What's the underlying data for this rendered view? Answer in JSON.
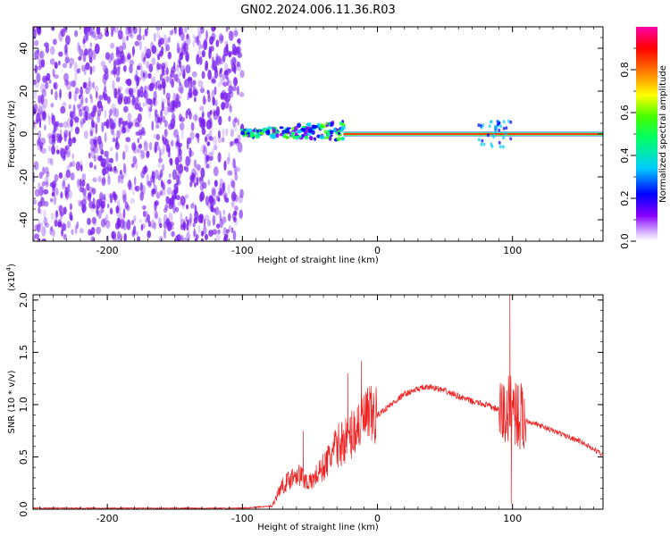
{
  "title": "GN02.2024.006.11.36.R03",
  "colors": {
    "snr_line": "#ee2222",
    "spectrogram_noise": "#7a22ee",
    "colorbar": [
      "#ffffff",
      "#8800ff",
      "#0000ff",
      "#00ccff",
      "#00ff66",
      "#44ff00",
      "#ffff00",
      "#ff8800",
      "#ff0000",
      "#ff00aa"
    ]
  },
  "chart_data": [
    {
      "type": "heatmap",
      "description_kind": "spectrogram",
      "xlabel": "Height of straight line (km)",
      "ylabel": "Frequency (Hz)",
      "xlim": [
        -255,
        167
      ],
      "ylim": [
        -50,
        50
      ],
      "xticks": [
        -200,
        -100,
        0,
        100
      ],
      "yticks": [
        -40,
        -20,
        0,
        20,
        40
      ],
      "colorbar": {
        "label": "Normalized spectral amplitude",
        "range": [
          0,
          1
        ],
        "ticks": [
          0.0,
          0.2,
          0.4,
          0.6,
          0.8
        ]
      },
      "regions": [
        {
          "x_range": [
            -255,
            -100
          ],
          "freq_range": [
            -50,
            50
          ],
          "amplitude": 0.1
        },
        {
          "x_range": [
            -100,
            -25
          ],
          "freq_range": [
            -5,
            10
          ],
          "amplitude": 0.4
        },
        {
          "x_range": [
            -25,
            167
          ],
          "center_freq": 0,
          "amplitude": 0.9
        }
      ]
    },
    {
      "type": "line",
      "xlabel": "Height of straight line (km)",
      "ylabel": "SNR (10 * v/v)",
      "y_multiplier": "(x10^4)",
      "xlim": [
        -255,
        167
      ],
      "ylim": [
        0,
        2.05
      ],
      "xticks": [
        -200,
        -100,
        0,
        100
      ],
      "yticks": [
        0.0,
        0.5,
        1.0,
        1.5,
        2.0
      ],
      "series": [
        {
          "x": [
            -255,
            -100,
            -78,
            -72,
            -60,
            -50,
            -40,
            -30,
            -20,
            -12,
            0,
            10,
            20,
            30,
            40,
            50,
            60,
            70,
            80,
            90,
            95,
            100,
            105,
            110,
            130,
            150,
            167
          ],
          "y": [
            0.01,
            0.01,
            0.03,
            0.2,
            0.35,
            0.25,
            0.4,
            0.6,
            0.7,
            0.85,
            0.9,
            1.0,
            1.1,
            1.15,
            1.17,
            1.13,
            1.08,
            1.03,
            1.0,
            0.95,
            0.9,
            1.0,
            0.88,
            0.85,
            0.75,
            0.65,
            0.52
          ],
          "spikes": [
            {
              "x": 98,
              "y": 2.05
            },
            {
              "x": 99,
              "y": 0.05
            },
            {
              "x": -12,
              "y": 1.42
            },
            {
              "x": -22,
              "y": 1.3
            },
            {
              "x": -55,
              "y": 0.75
            }
          ]
        }
      ]
    }
  ]
}
